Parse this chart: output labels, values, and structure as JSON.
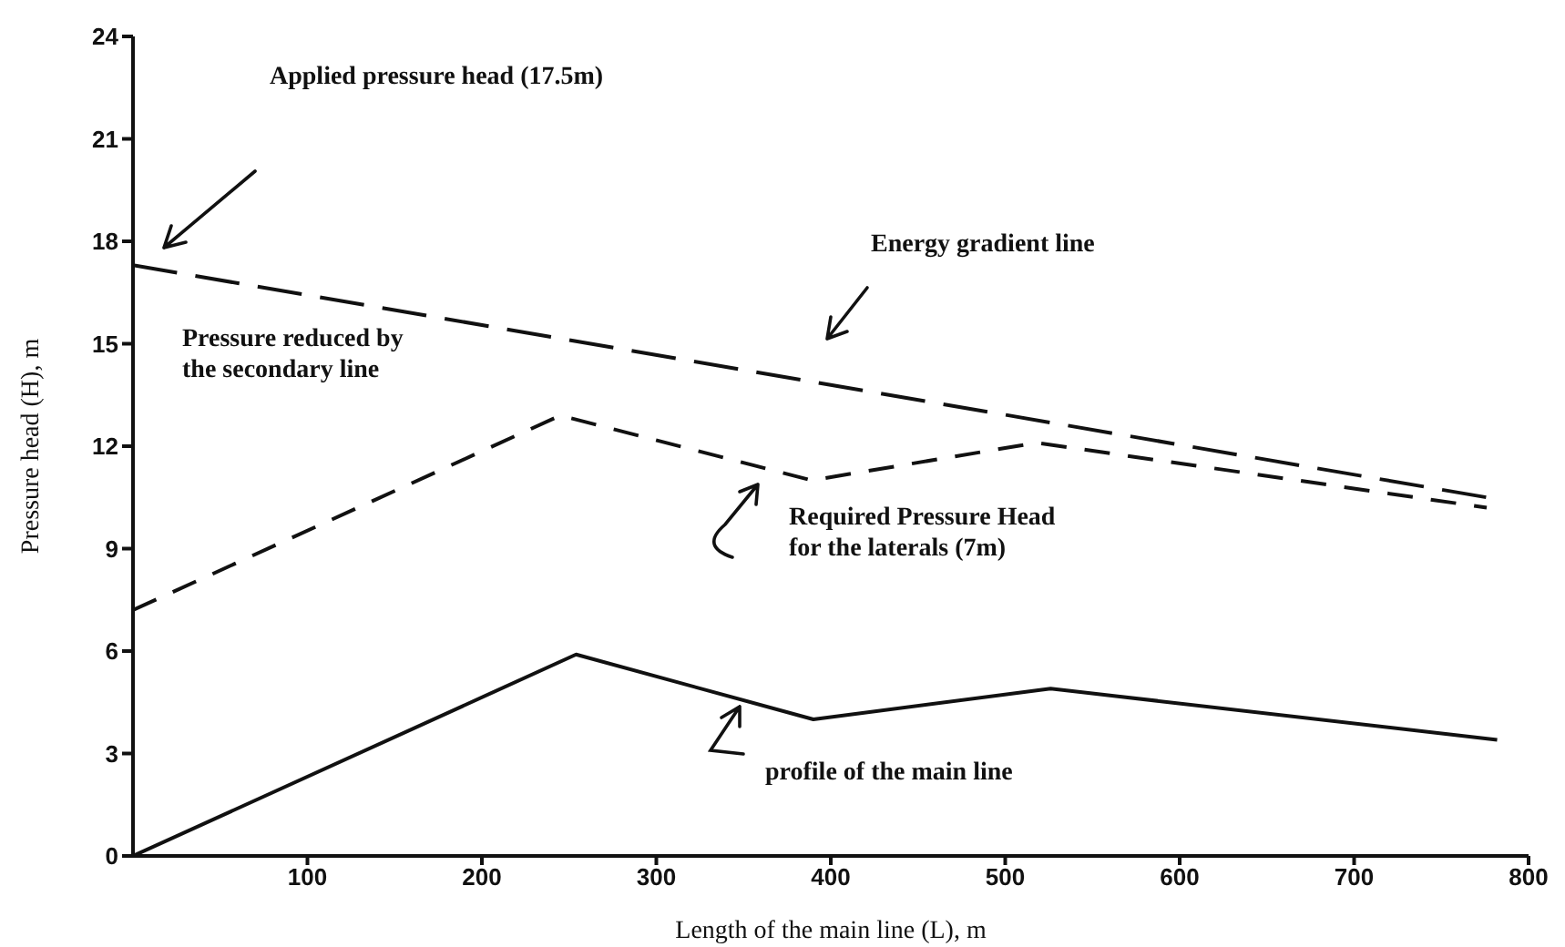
{
  "chart_data": {
    "type": "line",
    "xlabel": "Length of the main line (L), m",
    "ylabel": "Pressure head (H), m",
    "xlim": [
      0,
      800
    ],
    "xticks": [
      100,
      200,
      300,
      400,
      500,
      600,
      700,
      800
    ],
    "ylim": [
      0,
      24
    ],
    "yticks": [
      0,
      3,
      6,
      9,
      12,
      15,
      18,
      21,
      24
    ],
    "grid": false,
    "marker": "none",
    "series": [
      {
        "color": "#111111",
        "line_style": "dashed",
        "x": [
          0,
          776
        ],
        "values": [
          17.3,
          10.5
        ]
      },
      {
        "color": "#111111",
        "line_style": "dashed",
        "x": [
          0,
          245,
          389,
          518,
          776
        ],
        "values": [
          7.2,
          12.9,
          11.0,
          12.1,
          10.2
        ]
      },
      {
        "color": "#111111",
        "line_style": "solid",
        "x": [
          0,
          254,
          390,
          526,
          782
        ],
        "values": [
          0,
          5.9,
          4.0,
          4.9,
          3.4
        ]
      }
    ],
    "annotations": [
      "Applied pressure head (17.5m)",
      "Energy gradient line",
      "Pressure reduced by the secondary line",
      "Required Pressure Head for the laterals (7m)",
      "profile of the main line"
    ]
  }
}
